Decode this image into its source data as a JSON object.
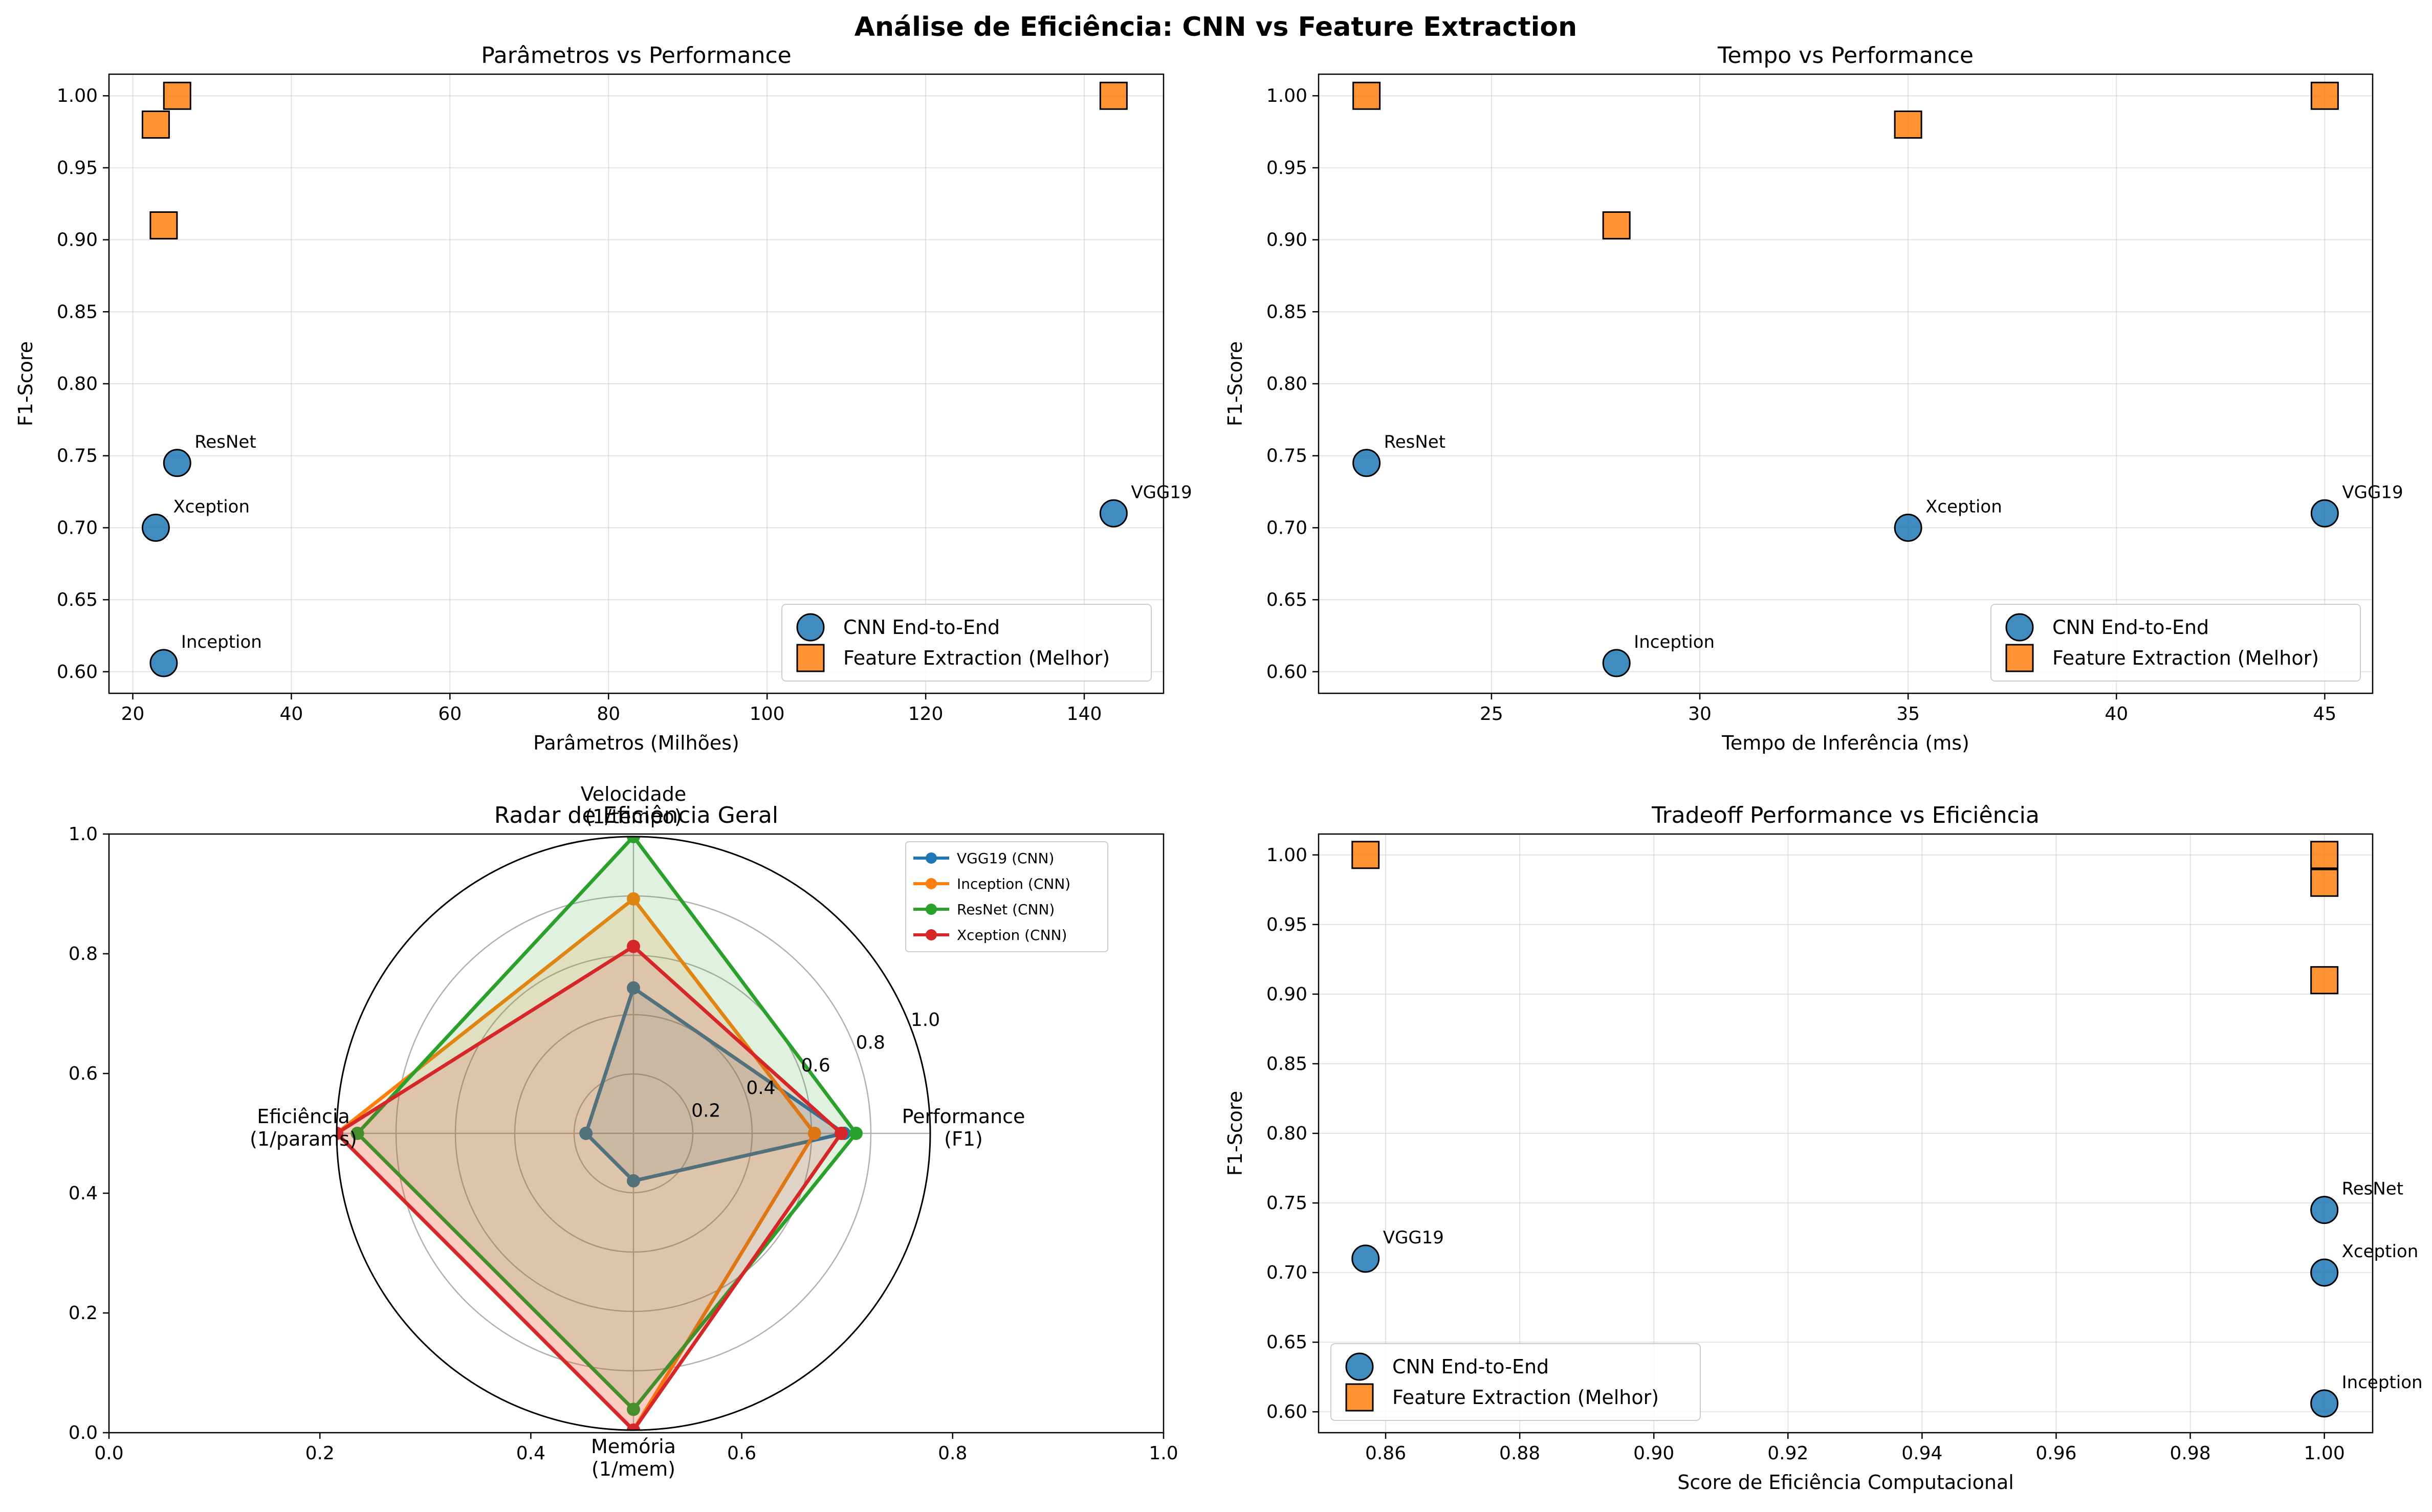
{
  "figure": {
    "suptitle": "Análise de Eficiência: CNN vs Feature Extraction"
  },
  "colors": {
    "cnn": "#1f77b4",
    "fe": "#ff7f0e",
    "vgg": "#1f77b4",
    "inception": "#ff7f0e",
    "resnet": "#2ca02c",
    "xception": "#d62728"
  },
  "chart_data": [
    {
      "id": "params",
      "type": "scatter",
      "title": "Parâmetros vs Performance",
      "xlabel": "Parâmetros (Milhões)",
      "ylabel": "F1-Score",
      "xlim": [
        17,
        150
      ],
      "ylim": [
        0.585,
        1.015
      ],
      "xticks": [
        20,
        40,
        60,
        80,
        100,
        120,
        140
      ],
      "yticks": [
        0.6,
        0.65,
        0.7,
        0.75,
        0.8,
        0.85,
        0.9,
        0.95,
        1.0
      ],
      "grid": true,
      "legend_position": "lower-right",
      "legend": [
        "CNN End-to-End",
        "Feature Extraction (Melhor)"
      ],
      "series": [
        {
          "name": "CNN End-to-End",
          "marker": "circle",
          "points": [
            {
              "x": 143.7,
              "y": 0.71,
              "label": "VGG19"
            },
            {
              "x": 23.9,
              "y": 0.606,
              "label": "Inception"
            },
            {
              "x": 25.6,
              "y": 0.745,
              "label": "ResNet"
            },
            {
              "x": 22.9,
              "y": 0.7,
              "label": "Xception"
            }
          ]
        },
        {
          "name": "Feature Extraction (Melhor)",
          "marker": "square",
          "points": [
            {
              "x": 143.7,
              "y": 1.0
            },
            {
              "x": 23.9,
              "y": 0.91
            },
            {
              "x": 25.6,
              "y": 1.0
            },
            {
              "x": 22.9,
              "y": 0.98
            }
          ]
        }
      ]
    },
    {
      "id": "time",
      "type": "scatter",
      "title": "Tempo vs Performance",
      "xlabel": "Tempo de Inferência (ms)",
      "ylabel": "F1-Score",
      "xlim": [
        20.85,
        46.15
      ],
      "ylim": [
        0.585,
        1.015
      ],
      "xticks": [
        25,
        30,
        35,
        40,
        45
      ],
      "yticks": [
        0.6,
        0.65,
        0.7,
        0.75,
        0.8,
        0.85,
        0.9,
        0.95,
        1.0
      ],
      "grid": true,
      "legend_position": "lower-right",
      "legend": [
        "CNN End-to-End",
        "Feature Extraction (Melhor)"
      ],
      "series": [
        {
          "name": "CNN End-to-End",
          "marker": "circle",
          "points": [
            {
              "x": 45,
              "y": 0.71,
              "label": "VGG19"
            },
            {
              "x": 28,
              "y": 0.606,
              "label": "Inception"
            },
            {
              "x": 22,
              "y": 0.745,
              "label": "ResNet"
            },
            {
              "x": 35,
              "y": 0.7,
              "label": "Xception"
            }
          ]
        },
        {
          "name": "Feature Extraction (Melhor)",
          "marker": "square",
          "points": [
            {
              "x": 45,
              "y": 1.0
            },
            {
              "x": 28,
              "y": 0.91
            },
            {
              "x": 22,
              "y": 1.0
            },
            {
              "x": 35,
              "y": 0.98
            }
          ]
        }
      ]
    },
    {
      "id": "radar",
      "type": "radar",
      "title": "Radar de Eficiência Geral",
      "axes": [
        "Performance\n(F1)",
        "Velocidade\n(1/tempo)",
        "Eficiência\n(1/params)",
        "Memória\n(1/mem)"
      ],
      "rticks": [
        "0.2",
        "0.4",
        "0.6",
        "0.8",
        "1.0"
      ],
      "rmax": 1.0,
      "background_xticks": [
        "0.0",
        "0.2",
        "0.4",
        "0.6",
        "0.8",
        "1.0"
      ],
      "background_yticks": [
        "0.0",
        "0.2",
        "0.4",
        "0.6",
        "0.8",
        "1.0"
      ],
      "legend_position": "upper-right",
      "series": [
        {
          "name": "VGG19 (CNN)",
          "values": [
            0.71,
            0.49,
            0.16,
            0.16
          ]
        },
        {
          "name": "Inception (CNN)",
          "values": [
            0.61,
            0.79,
            1.0,
            1.0
          ]
        },
        {
          "name": "ResNet (CNN)",
          "values": [
            0.75,
            1.0,
            0.93,
            0.93
          ]
        },
        {
          "name": "Xception (CNN)",
          "values": [
            0.7,
            0.63,
            1.0,
            1.0
          ]
        }
      ]
    },
    {
      "id": "tradeoff",
      "type": "scatter",
      "title": "Tradeoff Performance vs Eficiência",
      "xlabel": "Score de Eficiência Computacional",
      "ylabel": "F1-Score",
      "xlim": [
        0.85,
        1.0072
      ],
      "ylim": [
        0.585,
        1.015
      ],
      "xticks": [
        0.86,
        0.88,
        0.9,
        0.92,
        0.94,
        0.96,
        0.98,
        1.0
      ],
      "yticks": [
        0.6,
        0.65,
        0.7,
        0.75,
        0.8,
        0.85,
        0.9,
        0.95,
        1.0
      ],
      "grid": true,
      "legend_position": "lower-left",
      "legend": [
        "CNN End-to-End",
        "Feature Extraction (Melhor)"
      ],
      "series": [
        {
          "name": "CNN End-to-End",
          "marker": "circle",
          "points": [
            {
              "x": 0.857,
              "y": 0.71,
              "label": "VGG19"
            },
            {
              "x": 1.0,
              "y": 0.606,
              "label": "Inception"
            },
            {
              "x": 1.0,
              "y": 0.745,
              "label": "ResNet"
            },
            {
              "x": 1.0,
              "y": 0.7,
              "label": "Xception"
            }
          ]
        },
        {
          "name": "Feature Extraction (Melhor)",
          "marker": "square",
          "points": [
            {
              "x": 0.857,
              "y": 1.0
            },
            {
              "x": 1.0,
              "y": 0.91
            },
            {
              "x": 1.0,
              "y": 1.0
            },
            {
              "x": 1.0,
              "y": 0.98
            }
          ]
        }
      ]
    }
  ]
}
